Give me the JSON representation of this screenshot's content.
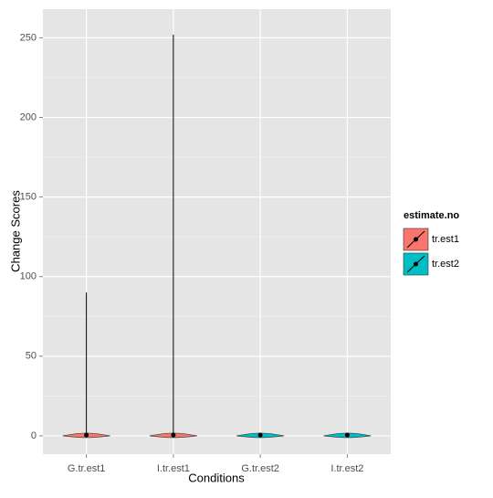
{
  "chart_data": {
    "type": "violin",
    "x_label": "Conditions",
    "y_label": "Change Scores",
    "categories": [
      "G.tr.est1",
      "I.tr.est1",
      "G.tr.est2",
      "I.tr.est2"
    ],
    "series": [
      {
        "name": "tr.est1",
        "color": "#F8766D",
        "max": [
          90,
          252,
          null,
          null
        ],
        "median": [
          0.5,
          0.5,
          null,
          null
        ]
      },
      {
        "name": "tr.est2",
        "color": "#00BFC4",
        "max": [
          null,
          null,
          1.5,
          1
        ],
        "median": [
          null,
          null,
          0.5,
          0.5
        ]
      }
    ],
    "ylim": [
      -11.5,
      268
    ],
    "yticks": [
      0,
      50,
      100,
      150,
      200,
      250
    ],
    "grid": true,
    "legend_title": "estimate.no",
    "legend_position": "right"
  }
}
